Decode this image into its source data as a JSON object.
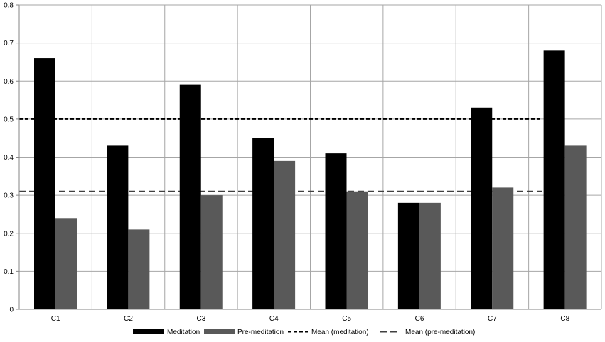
{
  "chart_data": {
    "type": "bar",
    "categories": [
      "C1",
      "C2",
      "C3",
      "C4",
      "C5",
      "C6",
      "C7",
      "C8"
    ],
    "series": [
      {
        "name": "Meditation",
        "values": [
          0.66,
          0.43,
          0.59,
          0.45,
          0.41,
          0.28,
          0.53,
          0.68
        ],
        "color": "#000000"
      },
      {
        "name": "Pre-meditation",
        "values": [
          0.24,
          0.21,
          0.3,
          0.39,
          0.31,
          0.28,
          0.32,
          0.43
        ],
        "color": "#595959"
      }
    ],
    "reference_lines": [
      {
        "name": "Mean (meditation)",
        "value": 0.5,
        "style": "short-dash",
        "color": "#000000"
      },
      {
        "name": "Mean (pre-meditation)",
        "value": 0.31,
        "style": "long-dash",
        "color": "#404040"
      }
    ],
    "yticks": [
      "0",
      "0.1",
      "0.2",
      "0.3",
      "0.4",
      "0.5",
      "0.6",
      "0.7",
      "0.8"
    ],
    "ylim": [
      0,
      0.8
    ],
    "grid": true,
    "legend_position": "bottom"
  }
}
